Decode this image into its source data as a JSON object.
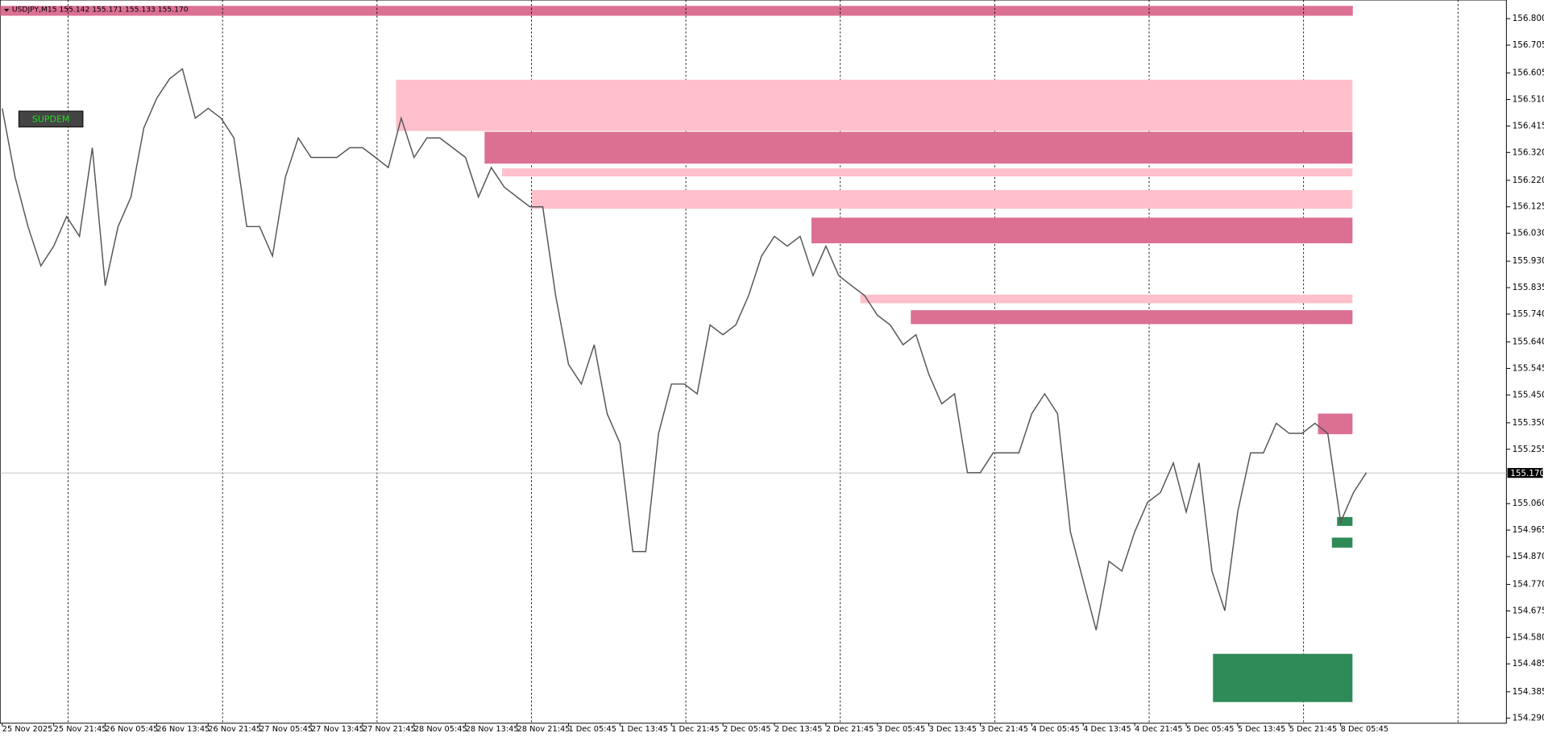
{
  "chart_data": {
    "type": "line",
    "title": "USDJPY,M15  155.142 155.171 155.133 155.170",
    "button": "SUPDEM",
    "categories": [
      "25 Nov 2025",
      "25 Nov 21:45",
      "26 Nov 05:45",
      "26 Nov 13:45",
      "26 Nov 21:45",
      "27 Nov 05:45",
      "27 Nov 13:45",
      "27 Nov 21:45",
      "28 Nov 05:45",
      "28 Nov 13:45",
      "28 Nov 21:45",
      "1 Dec 05:45",
      "1 Dec 13:45",
      "1 Dec 21:45",
      "2 Dec 05:45",
      "2 Dec 13:45",
      "2 Dec 21:45",
      "3 Dec 05:45",
      "3 Dec 13:45",
      "3 Dec 21:45",
      "4 Dec 05:45",
      "4 Dec 13:45",
      "4 Dec 21:45",
      "5 Dec 05:45",
      "5 Dec 13:45",
      "5 Dec 21:45",
      "8 Dec 05:45"
    ],
    "xlim": [
      -0.04,
      29.22
    ],
    "ylim": [
      154.272,
      156.867
    ],
    "yticks": [
      {
        "value": 156.8,
        "label": "156.800"
      },
      {
        "value": 156.705,
        "label": "156.705"
      },
      {
        "value": 156.605,
        "label": "156.605"
      },
      {
        "value": 156.51,
        "label": "156.510"
      },
      {
        "value": 156.415,
        "label": "156.415"
      },
      {
        "value": 156.32,
        "label": "156.320"
      },
      {
        "value": 156.22,
        "label": "156.220"
      },
      {
        "value": 156.125,
        "label": "156.125"
      },
      {
        "value": 156.03,
        "label": "156.030"
      },
      {
        "value": 155.93,
        "label": "155.930"
      },
      {
        "value": 155.835,
        "label": "155.835"
      },
      {
        "value": 155.74,
        "label": "155.740"
      },
      {
        "value": 155.64,
        "label": "155.640"
      },
      {
        "value": 155.545,
        "label": "155.545"
      },
      {
        "value": 155.45,
        "label": "155.450"
      },
      {
        "value": 155.35,
        "label": "155.350"
      },
      {
        "value": 155.255,
        "label": "155.255"
      },
      {
        "value": 155.06,
        "label": "155.060"
      },
      {
        "value": 154.965,
        "label": "154.965"
      },
      {
        "value": 154.87,
        "label": "154.870"
      },
      {
        "value": 154.77,
        "label": "154.770"
      },
      {
        "value": 154.675,
        "label": "154.675"
      },
      {
        "value": 154.58,
        "label": "154.580"
      },
      {
        "value": 154.485,
        "label": "154.485"
      },
      {
        "value": 154.385,
        "label": "154.385"
      },
      {
        "value": 154.29,
        "label": "154.290"
      }
    ],
    "xgrid": [
      1.28,
      4.28,
      7.28,
      10.28,
      13.28,
      16.28,
      19.28,
      22.28,
      25.28,
      28.28
    ],
    "last_price": {
      "value": 155.17,
      "label": "155.170"
    },
    "series": [
      {
        "name": "USDJPY",
        "color": "#555555",
        "x": [
          0,
          0.25,
          0.5,
          0.75,
          1,
          1.25,
          1.5,
          1.75,
          2,
          2.25,
          2.5,
          2.75,
          3,
          3.25,
          3.5,
          3.75,
          4,
          4.25,
          4.5,
          4.75,
          5,
          5.25,
          5.5,
          5.75,
          6,
          6.25,
          6.5,
          6.75,
          7,
          7.25,
          7.5,
          7.75,
          8,
          8.25,
          8.5,
          8.75,
          9,
          9.25,
          9.5,
          9.75,
          10,
          10.25,
          10.5,
          10.75,
          11,
          11.25,
          11.5,
          11.75,
          12,
          12.25,
          12.5,
          12.75,
          13,
          13.25,
          13.5,
          13.75,
          14,
          14.25,
          14.5,
          14.75,
          15,
          15.25,
          15.5,
          15.75,
          16,
          16.25,
          16.5,
          16.75,
          17,
          17.25,
          17.5,
          17.75,
          18,
          18.25,
          18.5,
          18.75,
          19,
          19.25,
          19.5,
          19.75,
          20,
          20.25,
          20.5,
          20.75,
          21,
          21.25,
          21.5,
          21.75,
          22,
          22.25,
          22.5,
          22.75,
          23,
          23.25,
          23.5,
          23.75,
          24,
          24.25,
          24.5,
          24.75,
          25,
          25.25,
          25.5,
          25.75,
          26,
          26.25,
          26.5
        ],
        "values": [
          156.478,
          156.231,
          156.054,
          155.913,
          155.984,
          156.09,
          156.019,
          156.337,
          155.842,
          156.054,
          156.16,
          156.408,
          156.514,
          156.584,
          156.62,
          156.443,
          156.478,
          156.443,
          156.372,
          156.054,
          156.054,
          155.948,
          156.231,
          156.372,
          156.302,
          156.302,
          156.302,
          156.337,
          156.337,
          156.302,
          156.266,
          156.443,
          156.302,
          156.372,
          156.372,
          156.337,
          156.302,
          156.16,
          156.266,
          156.196,
          156.16,
          156.125,
          156.125,
          155.807,
          155.56,
          155.489,
          155.63,
          155.383,
          155.277,
          154.888,
          154.888,
          155.312,
          155.489,
          155.489,
          155.454,
          155.701,
          155.666,
          155.701,
          155.807,
          155.948,
          156.019,
          155.984,
          156.019,
          155.878,
          155.984,
          155.878,
          155.842,
          155.807,
          155.736,
          155.701,
          155.63,
          155.666,
          155.524,
          155.418,
          155.454,
          155.171,
          155.171,
          155.242,
          155.242,
          155.242,
          155.383,
          155.454,
          155.383,
          154.959,
          154.782,
          154.606,
          154.853,
          154.818,
          154.959,
          155.065,
          155.1,
          155.206,
          155.03,
          155.206,
          154.818,
          154.676,
          155.03,
          155.242,
          155.242,
          155.348,
          155.312,
          155.312,
          155.348,
          155.312,
          154.994,
          155.1,
          155.171
        ]
      }
    ],
    "zones": [
      {
        "x": [
          7.65,
          26.23
        ],
        "y": [
          156.397,
          156.581
        ],
        "color": "#ffc0cb"
      },
      {
        "x": [
          9.37,
          26.23
        ],
        "y": [
          156.28,
          156.394
        ],
        "color": "#db7093"
      },
      {
        "x": [
          9.71,
          26.23
        ],
        "y": [
          156.234,
          156.263
        ],
        "color": "#ffc0cb"
      },
      {
        "x": [
          10.29,
          26.23
        ],
        "y": [
          156.118,
          156.185
        ],
        "color": "#ffc0cb"
      },
      {
        "x": [
          15.72,
          26.23
        ],
        "y": [
          155.994,
          156.086
        ],
        "color": "#db7093"
      },
      {
        "x": [
          16.67,
          26.23
        ],
        "y": [
          155.779,
          155.81
        ],
        "color": "#ffc0cb"
      },
      {
        "x": [
          17.65,
          26.23
        ],
        "y": [
          155.704,
          155.754
        ],
        "color": "#db7093"
      },
      {
        "x": [
          25.56,
          26.23
        ],
        "y": [
          155.309,
          155.383
        ],
        "color": "#db7093"
      },
      {
        "x": [
          25.93,
          26.23
        ],
        "y": [
          154.98,
          155.012
        ],
        "color": "#2e8b57"
      },
      {
        "x": [
          25.83,
          26.23
        ],
        "y": [
          154.902,
          154.938
        ],
        "color": "#2e8b57"
      },
      {
        "x": [
          23.52,
          26.23
        ],
        "y": [
          154.348,
          154.521
        ],
        "color": "#2e8b57"
      }
    ]
  }
}
